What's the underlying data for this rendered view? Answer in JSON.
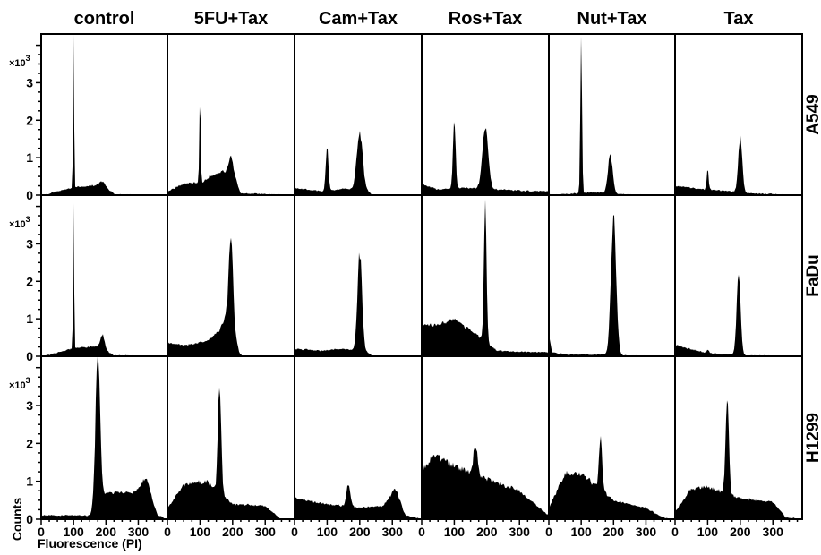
{
  "chart_data": {
    "type": "area",
    "title": "",
    "columns": [
      "control",
      "5FU+Tax",
      "Cam+Tax",
      "Ros+Tax",
      "Nut+Tax",
      "Tax"
    ],
    "rows": [
      "A549",
      "FaDu",
      "H1299"
    ],
    "xlabel": "Fluorescence (PI)",
    "ylabel": "Counts",
    "y_multiplier_label": "×10",
    "y_multiplier_exp": "3",
    "xlim": [
      0,
      390
    ],
    "ylim": [
      0,
      4.3
    ],
    "x_ticks": [
      0,
      100,
      200,
      300
    ],
    "x_tick_labels": [
      "0",
      "100",
      "200",
      "300"
    ],
    "y_ticks": [
      0,
      1,
      2,
      3
    ],
    "y_tick_labels": [
      "0",
      "1",
      "2",
      "3"
    ],
    "grid": false,
    "legend": "none",
    "color": "#000000",
    "panels": [
      {
        "row": "A549",
        "column": "control",
        "baseline": [
          [
            0,
            0.05
          ],
          [
            5,
            0.0
          ],
          [
            95,
            0.2
          ],
          [
            150,
            0.25
          ],
          [
            185,
            0.28
          ],
          [
            230,
            0.02
          ],
          [
            390,
            0.0
          ]
        ],
        "peaks": [
          {
            "x": 100,
            "y": 4.3,
            "w": 1.6
          },
          {
            "x": 190,
            "y": 0.1,
            "w": 8
          }
        ]
      },
      {
        "row": "A549",
        "column": "5FU+Tax",
        "baseline": [
          [
            0,
            0.1
          ],
          [
            50,
            0.3
          ],
          [
            110,
            0.35
          ],
          [
            130,
            0.5
          ],
          [
            170,
            0.65
          ],
          [
            210,
            0.4
          ],
          [
            225,
            0.05
          ],
          [
            390,
            0.0
          ]
        ],
        "peaks": [
          {
            "x": 100,
            "y": 2.4,
            "w": 2
          },
          {
            "x": 195,
            "y": 0.5,
            "w": 7
          }
        ]
      },
      {
        "row": "A549",
        "column": "Cam+Tax",
        "baseline": [
          [
            0,
            0.18
          ],
          [
            90,
            0.1
          ],
          [
            150,
            0.18
          ],
          [
            225,
            0.1
          ],
          [
            240,
            0.0
          ],
          [
            390,
            0.0
          ]
        ],
        "peaks": [
          {
            "x": 100,
            "y": 1.2,
            "w": 4
          },
          {
            "x": 200,
            "y": 1.55,
            "w": 9
          }
        ]
      },
      {
        "row": "A549",
        "column": "Ros+Tax",
        "baseline": [
          [
            0,
            0.3
          ],
          [
            50,
            0.15
          ],
          [
            130,
            0.2
          ],
          [
            230,
            0.15
          ],
          [
            300,
            0.12
          ],
          [
            390,
            0.1
          ]
        ],
        "peaks": [
          {
            "x": 100,
            "y": 1.85,
            "w": 4
          },
          {
            "x": 195,
            "y": 1.6,
            "w": 9
          }
        ]
      },
      {
        "row": "A549",
        "column": "Nut+Tax",
        "baseline": [
          [
            0,
            0.05
          ],
          [
            5,
            0.0
          ],
          [
            90,
            0.05
          ],
          [
            150,
            0.08
          ],
          [
            230,
            0.02
          ],
          [
            390,
            0.0
          ]
        ],
        "peaks": [
          {
            "x": 100,
            "y": 4.2,
            "w": 2.5
          },
          {
            "x": 190,
            "y": 1.05,
            "w": 7
          }
        ]
      },
      {
        "row": "A549",
        "column": "Tax",
        "baseline": [
          [
            0,
            0.25
          ],
          [
            90,
            0.15
          ],
          [
            150,
            0.12
          ],
          [
            230,
            0.05
          ],
          [
            390,
            0.0
          ]
        ],
        "peaks": [
          {
            "x": 100,
            "y": 0.55,
            "w": 3
          },
          {
            "x": 200,
            "y": 1.5,
            "w": 6
          }
        ]
      },
      {
        "row": "FaDu",
        "column": "control",
        "baseline": [
          [
            0,
            0.05
          ],
          [
            5,
            0.0
          ],
          [
            95,
            0.2
          ],
          [
            150,
            0.25
          ],
          [
            180,
            0.28
          ],
          [
            225,
            0.02
          ],
          [
            390,
            0.0
          ]
        ],
        "peaks": [
          {
            "x": 100,
            "y": 4.1,
            "w": 1.6
          },
          {
            "x": 190,
            "y": 0.35,
            "w": 6
          }
        ]
      },
      {
        "row": "FaDu",
        "column": "5FU+Tax",
        "baseline": [
          [
            0,
            0.35
          ],
          [
            60,
            0.3
          ],
          [
            120,
            0.4
          ],
          [
            160,
            0.7
          ],
          [
            190,
            1.3
          ],
          [
            220,
            0.1
          ],
          [
            230,
            0.0
          ],
          [
            390,
            0.0
          ]
        ],
        "peaks": [
          {
            "x": 195,
            "y": 2.1,
            "w": 6
          }
        ]
      },
      {
        "row": "FaDu",
        "column": "Cam+Tax",
        "baseline": [
          [
            0,
            0.2
          ],
          [
            80,
            0.15
          ],
          [
            150,
            0.2
          ],
          [
            225,
            0.1
          ],
          [
            240,
            0.0
          ],
          [
            390,
            0.0
          ]
        ],
        "peaks": [
          {
            "x": 200,
            "y": 2.6,
            "w": 7
          }
        ]
      },
      {
        "row": "FaDu",
        "column": "Ros+Tax",
        "baseline": [
          [
            0,
            0.8
          ],
          [
            50,
            0.85
          ],
          [
            100,
            1.0
          ],
          [
            150,
            0.7
          ],
          [
            230,
            0.15
          ],
          [
            300,
            0.12
          ],
          [
            390,
            0.1
          ]
        ],
        "peaks": [
          {
            "x": 195,
            "y": 3.6,
            "w": 4
          }
        ]
      },
      {
        "row": "FaDu",
        "column": "Nut+Tax",
        "baseline": [
          [
            0,
            0.6
          ],
          [
            10,
            0.1
          ],
          [
            60,
            0.05
          ],
          [
            150,
            0.05
          ],
          [
            230,
            0.02
          ],
          [
            390,
            0.0
          ]
        ],
        "peaks": [
          {
            "x": 200,
            "y": 3.7,
            "w": 8
          }
        ]
      },
      {
        "row": "FaDu",
        "column": "Tax",
        "baseline": [
          [
            0,
            0.3
          ],
          [
            90,
            0.1
          ],
          [
            150,
            0.05
          ],
          [
            230,
            0.02
          ],
          [
            390,
            0.0
          ]
        ],
        "peaks": [
          {
            "x": 100,
            "y": 0.1,
            "w": 3
          },
          {
            "x": 195,
            "y": 2.2,
            "w": 6
          }
        ]
      },
      {
        "row": "H1299",
        "column": "control",
        "baseline": [
          [
            0,
            0.1
          ],
          [
            150,
            0.1
          ],
          [
            200,
            0.7
          ],
          [
            280,
            0.7
          ],
          [
            330,
            0.8
          ],
          [
            360,
            0.1
          ],
          [
            390,
            0.0
          ]
        ],
        "peaks": [
          {
            "x": 175,
            "y": 4.0,
            "w": 7
          },
          {
            "x": 320,
            "y": 0.25,
            "w": 12
          }
        ]
      },
      {
        "row": "H1299",
        "column": "5FU+Tax",
        "baseline": [
          [
            0,
            0.3
          ],
          [
            50,
            0.9
          ],
          [
            120,
            1.0
          ],
          [
            200,
            0.4
          ],
          [
            300,
            0.35
          ],
          [
            350,
            0.0
          ],
          [
            390,
            0.0
          ]
        ],
        "peaks": [
          {
            "x": 160,
            "y": 3.0,
            "w": 5
          }
        ]
      },
      {
        "row": "H1299",
        "column": "Cam+Tax",
        "baseline": [
          [
            0,
            0.55
          ],
          [
            100,
            0.4
          ],
          [
            200,
            0.3
          ],
          [
            270,
            0.35
          ],
          [
            310,
            0.8
          ],
          [
            340,
            0.1
          ],
          [
            390,
            0.0
          ]
        ],
        "peaks": [
          {
            "x": 165,
            "y": 0.6,
            "w": 6
          }
        ]
      },
      {
        "row": "H1299",
        "column": "Ros+Tax",
        "baseline": [
          [
            0,
            1.3
          ],
          [
            40,
            1.7
          ],
          [
            100,
            1.4
          ],
          [
            220,
            1.0
          ],
          [
            300,
            0.75
          ],
          [
            360,
            0.3
          ],
          [
            390,
            0.1
          ]
        ],
        "peaks": [
          {
            "x": 165,
            "y": 0.8,
            "w": 6
          }
        ]
      },
      {
        "row": "H1299",
        "column": "Nut+Tax",
        "baseline": [
          [
            0,
            0.3
          ],
          [
            50,
            1.2
          ],
          [
            100,
            1.2
          ],
          [
            200,
            0.5
          ],
          [
            300,
            0.3
          ],
          [
            350,
            0.05
          ],
          [
            390,
            0.0
          ]
        ],
        "peaks": [
          {
            "x": 160,
            "y": 1.3,
            "w": 5
          }
        ]
      },
      {
        "row": "H1299",
        "column": "Tax",
        "baseline": [
          [
            0,
            0.2
          ],
          [
            50,
            0.8
          ],
          [
            100,
            0.85
          ],
          [
            200,
            0.55
          ],
          [
            300,
            0.45
          ],
          [
            340,
            0.05
          ],
          [
            390,
            0.0
          ]
        ],
        "peaks": [
          {
            "x": 160,
            "y": 2.6,
            "w": 5
          }
        ]
      }
    ]
  }
}
